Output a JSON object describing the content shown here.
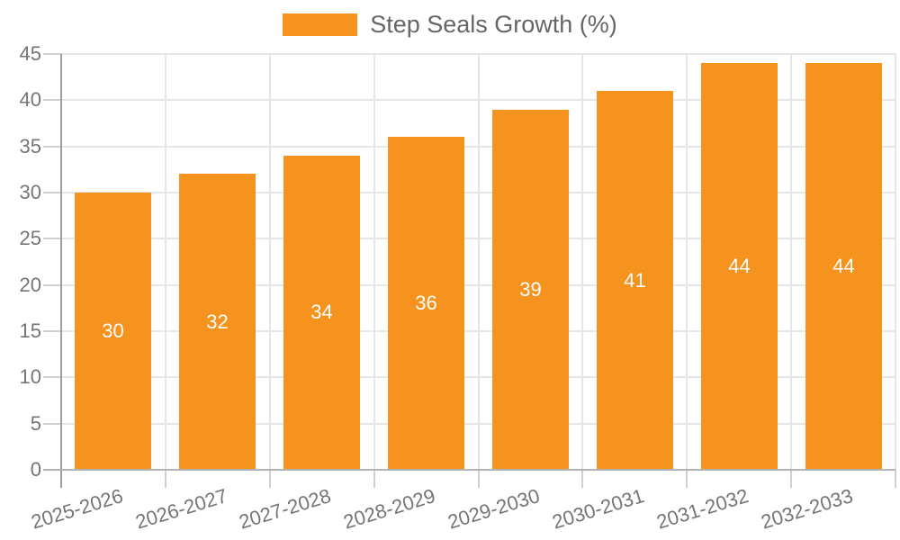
{
  "chart_data": {
    "type": "bar",
    "title": "",
    "legend": "Step Seals Growth (%)",
    "legend_position": "top-center",
    "categories": [
      "2025-2026",
      "2026-2027",
      "2027-2028",
      "2028-2029",
      "2029-2030",
      "2030-2031",
      "2031-2032",
      "2032-2033"
    ],
    "values": [
      30,
      32,
      34,
      36,
      39,
      41,
      44,
      44
    ],
    "xlabel": "",
    "ylabel": "",
    "ylim": [
      0,
      45
    ],
    "y_ticks": [
      0,
      5,
      10,
      15,
      20,
      25,
      30,
      35,
      40,
      45
    ],
    "grid": true,
    "bar_labels_visible": true,
    "colors": {
      "bar": "#f6921e",
      "bar_label": "#ffffff",
      "axis_label": "#757575",
      "legend_text": "#666666",
      "gridline": "#e6e6e6",
      "tick": "#cfcfcf",
      "y_axis_line": "#9e9e9e",
      "x_axis_line": "#b3b3b3",
      "background": "#ffffff"
    }
  }
}
